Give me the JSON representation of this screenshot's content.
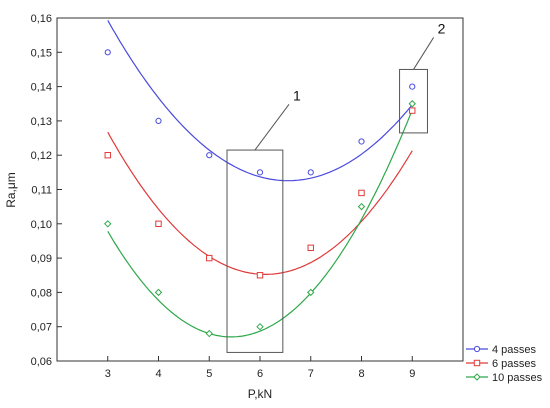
{
  "chart_data": {
    "type": "scatter",
    "title": "",
    "xlabel": "P,kN",
    "ylabel": "Ra,μm",
    "xlim": [
      2,
      10
    ],
    "ylim": [
      0.06,
      0.16
    ],
    "x_ticks": [
      3,
      4,
      5,
      6,
      7,
      8,
      9
    ],
    "y_ticks": [
      "0,06",
      "0,07",
      "0,08",
      "0,09",
      "0,10",
      "0,11",
      "0,12",
      "0,13",
      "0,14",
      "0,15",
      "0,16"
    ],
    "y_tick_values": [
      0.06,
      0.07,
      0.08,
      0.09,
      0.1,
      0.11,
      0.12,
      0.13,
      0.14,
      0.15,
      0.16
    ],
    "grid": false,
    "legend_position": "bottom-right",
    "series": [
      {
        "name": "4 passes",
        "color": "#4a4ae0",
        "marker": "circle",
        "x": [
          3,
          4,
          5,
          6,
          7,
          8,
          9
        ],
        "y": [
          0.15,
          0.13,
          0.12,
          0.115,
          0.115,
          0.124,
          0.14
        ],
        "fit": [
          0.0037,
          -0.0485,
          0.2715
        ]
      },
      {
        "name": "6 passes",
        "color": "#e03a3a",
        "marker": "square",
        "x": [
          3,
          4,
          5,
          6,
          7,
          8,
          9
        ],
        "y": [
          0.12,
          0.1,
          0.09,
          0.085,
          0.093,
          0.109,
          0.133
        ],
        "fit": [
          0.0043,
          -0.0525,
          0.2455
        ]
      },
      {
        "name": "10 passes",
        "color": "#2ea84a",
        "marker": "diamond",
        "x": [
          3,
          4,
          5,
          6,
          7,
          8,
          9
        ],
        "y": [
          0.1,
          0.08,
          0.068,
          0.07,
          0.08,
          0.105,
          0.135
        ],
        "fit": [
          0.0052,
          -0.0565,
          0.2205
        ]
      }
    ],
    "annotations": [
      {
        "label": "1",
        "box_x": [
          5.35,
          6.45
        ],
        "box_y": [
          0.0625,
          0.1215
        ],
        "label_at": [
          6.65,
          0.136
        ]
      },
      {
        "label": "2",
        "box_x": [
          8.75,
          9.3
        ],
        "box_y": [
          0.1265,
          0.145
        ],
        "label_at": [
          9.5,
          0.1555
        ]
      }
    ]
  }
}
